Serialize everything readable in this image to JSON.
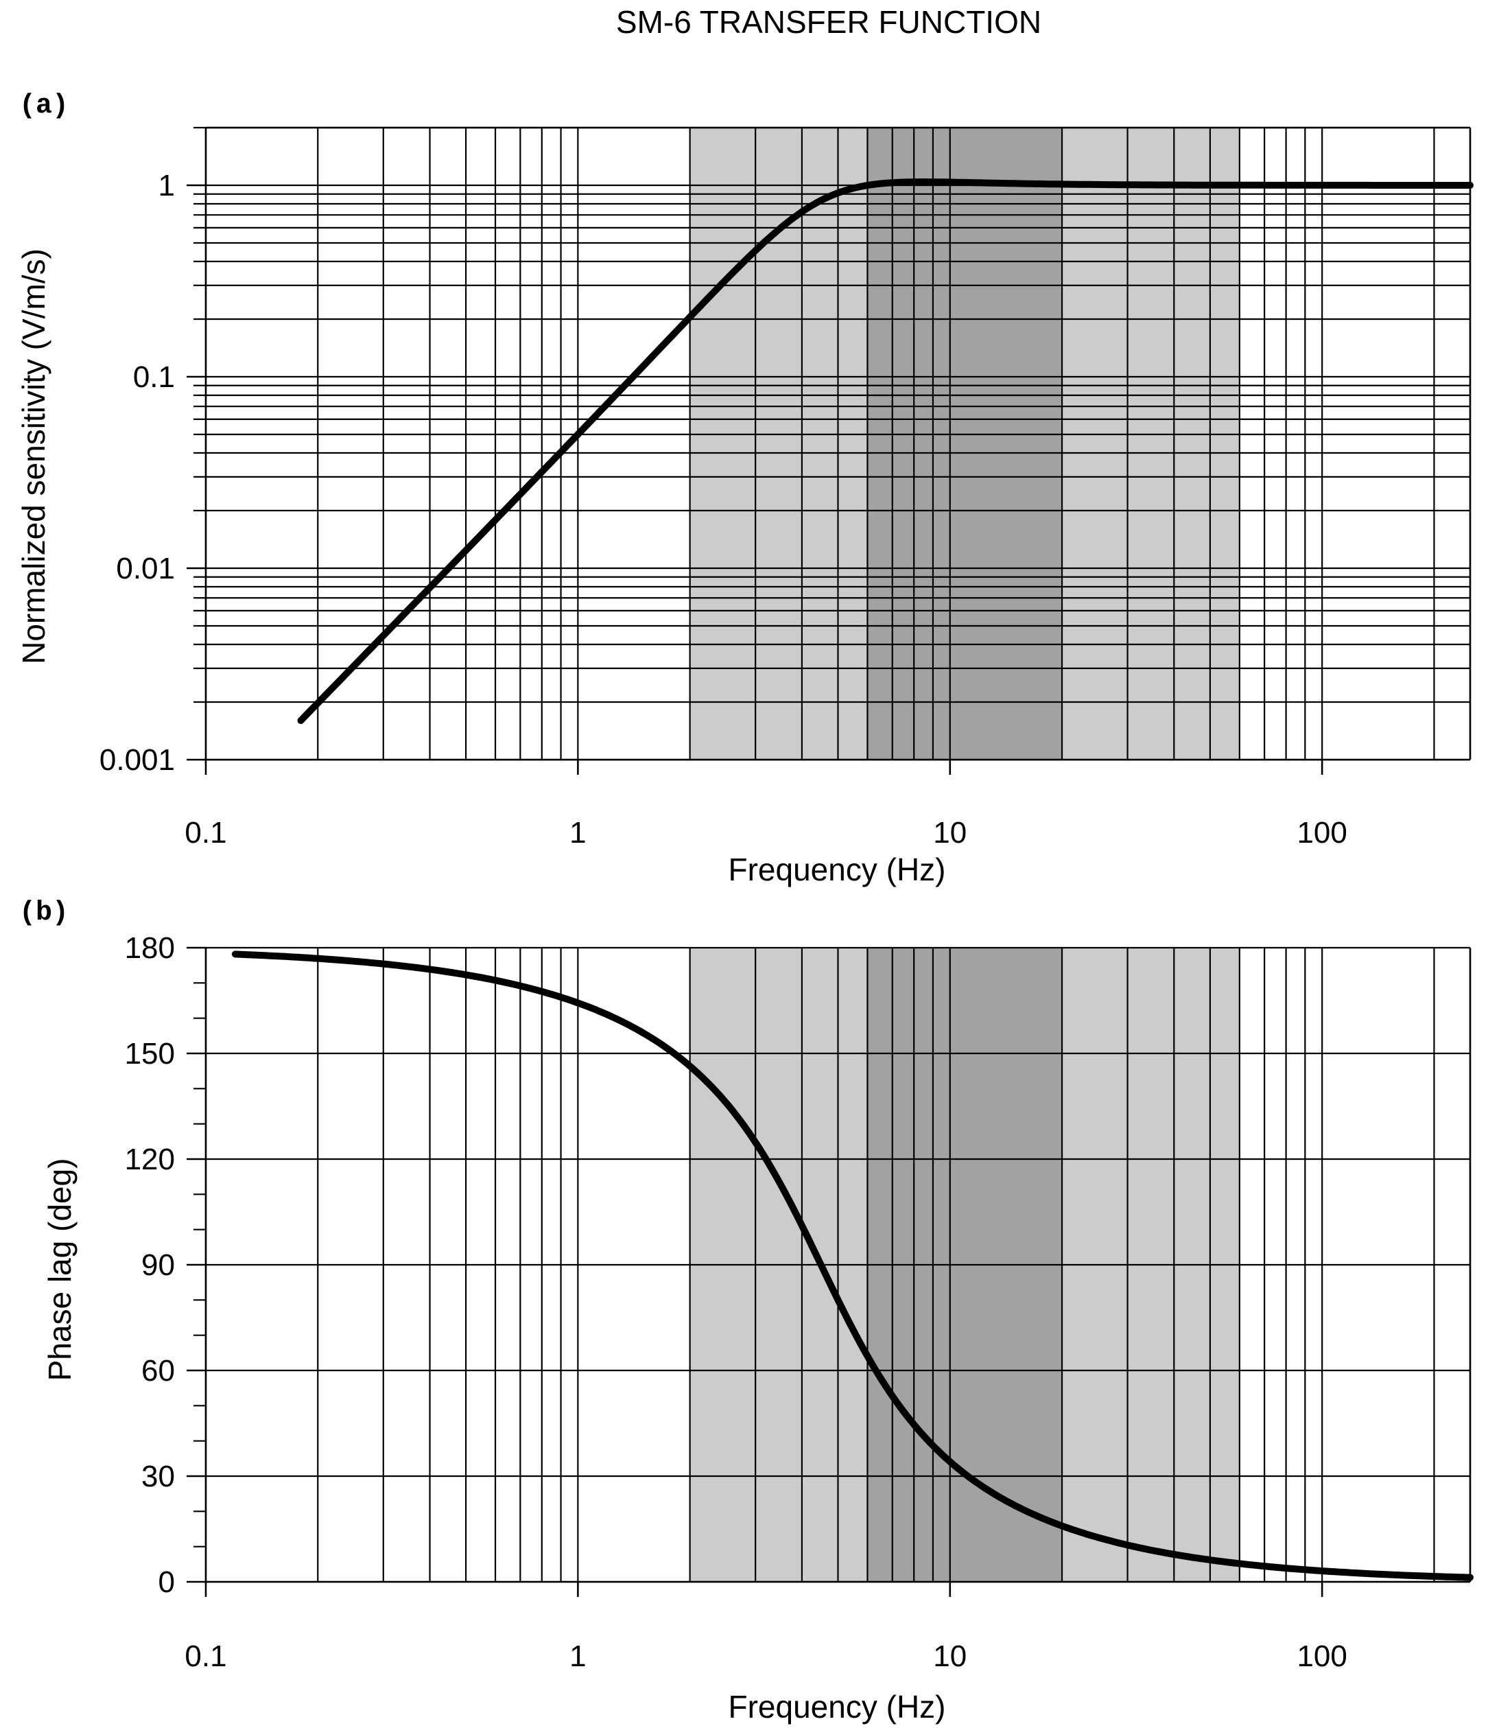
{
  "chart_data": {
    "title": "SM-6  TRANSFER FUNCTION",
    "shaded_bands": [
      {
        "name": "outer-band",
        "from": 2,
        "to": 60,
        "color": "#cccccc"
      },
      {
        "name": "inner-band",
        "from": 6,
        "to": 20,
        "color": "#a2a2a2"
      }
    ],
    "curve_color": "#000000",
    "panels": [
      {
        "id": "a",
        "tag": "(a)",
        "type": "line",
        "xscale": "log",
        "yscale": "log",
        "xlim": [
          0.1,
          250
        ],
        "ylim": [
          0.001,
          2
        ],
        "xlabel": "Frequency  (Hz)",
        "ylabel": "Normalized sensitivity (V/m/s)",
        "x_ticks": [
          0.1,
          1,
          10,
          100
        ],
        "x_tick_labels": [
          "0.1",
          "1",
          "10",
          "100"
        ],
        "y_ticks": [
          0.001,
          0.01,
          0.1,
          1
        ],
        "y_tick_labels": [
          "0.001",
          "0.01",
          "0.1",
          "1"
        ],
        "grid": true,
        "series": [
          {
            "name": "amplitude-response",
            "model": "amplitude",
            "f0": 4.5,
            "damping": 0.6,
            "x_start": 0.18,
            "x_end": 250
          }
        ]
      },
      {
        "id": "b",
        "tag": "(b)",
        "type": "line",
        "xscale": "log",
        "yscale": "linear",
        "xlim": [
          0.1,
          250
        ],
        "ylim": [
          0,
          180
        ],
        "xlabel": "Frequency  (Hz)",
        "ylabel": "Phase lag (deg)",
        "x_ticks": [
          0.1,
          1,
          10,
          100
        ],
        "x_tick_labels": [
          "0.1",
          "1",
          "10",
          "100"
        ],
        "y_ticks": [
          0,
          30,
          60,
          90,
          120,
          150,
          180
        ],
        "y_tick_labels": [
          "0",
          "30",
          "60",
          "90",
          "120",
          "150",
          "180"
        ],
        "y_minor_step": 10,
        "grid": true,
        "series": [
          {
            "name": "phase-response",
            "model": "phase",
            "f0": 4.5,
            "damping": 0.6,
            "x_start": 0.12,
            "x_end": 250
          }
        ]
      }
    ]
  }
}
